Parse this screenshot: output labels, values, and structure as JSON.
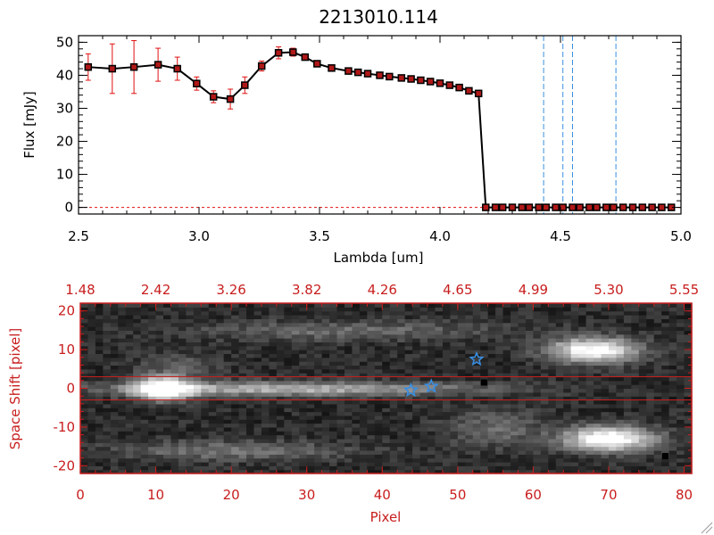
{
  "chart_data": [
    {
      "type": "line",
      "title": "2213010.114",
      "xlabel": "Lambda [um]",
      "ylabel": "Flux [mJy]",
      "xlim": [
        2.5,
        5.0
      ],
      "ylim": [
        -2,
        52
      ],
      "xticks": [
        "2.5",
        "3.0",
        "3.5",
        "4.0",
        "4.5",
        "5.0"
      ],
      "yticks": [
        "0",
        "10",
        "20",
        "30",
        "40",
        "50"
      ],
      "grid": false,
      "series": [
        {
          "x": [
            2.54,
            2.64,
            2.73,
            2.83,
            2.91,
            2.99,
            3.06,
            3.13,
            3.19,
            3.26,
            3.33,
            3.39,
            3.44,
            3.49,
            3.55,
            3.62,
            3.66,
            3.7,
            3.75,
            3.79,
            3.84,
            3.88,
            3.92,
            3.96,
            4.0,
            4.04,
            4.08,
            4.12,
            4.16,
            4.19,
            4.23,
            4.26,
            4.3,
            4.34,
            4.37,
            4.41,
            4.44,
            4.48,
            4.51,
            4.55,
            4.58,
            4.62,
            4.65,
            4.69,
            4.72,
            4.76,
            4.8,
            4.84,
            4.88,
            4.92,
            4.96
          ],
          "y": [
            42.5,
            42.0,
            42.5,
            43.2,
            42.0,
            37.5,
            33.5,
            32.8,
            37.0,
            42.8,
            46.8,
            47.0,
            45.5,
            43.5,
            42.2,
            41.3,
            40.9,
            40.5,
            40.0,
            39.6,
            39.2,
            38.9,
            38.5,
            38.1,
            37.6,
            37.0,
            36.3,
            35.3,
            34.5,
            0,
            0,
            0,
            0,
            0,
            0,
            0,
            0,
            0,
            0,
            0,
            0,
            0,
            0,
            0,
            0,
            0,
            0,
            0,
            0,
            0,
            0
          ],
          "yerr": [
            4.0,
            7.5,
            8.0,
            5.0,
            3.5,
            2.0,
            1.8,
            3.0,
            2.5,
            1.5,
            1.8,
            1.2,
            0,
            0,
            0,
            0,
            0,
            0,
            0,
            0,
            0,
            0,
            0,
            0,
            0,
            0,
            0,
            0,
            0,
            0,
            0,
            0,
            0,
            0,
            0,
            0,
            0,
            0,
            0,
            0,
            0,
            0,
            0,
            0,
            0,
            0,
            0,
            0,
            0,
            0,
            0
          ]
        }
      ],
      "vlines": [
        4.43,
        4.51,
        4.55,
        4.73
      ],
      "hline": 0
    },
    {
      "type": "heatmap",
      "xlabel": "Pixel",
      "ylabel": "Space Shift [pixel]",
      "xlim": [
        0,
        81
      ],
      "ylim": [
        -22,
        22
      ],
      "xticks": [
        "0",
        "10",
        "20",
        "30",
        "40",
        "50",
        "60",
        "70",
        "80"
      ],
      "yticks": [
        "-20",
        "-10",
        "0",
        "10",
        "20"
      ],
      "top_xticks": [
        "1.48",
        "2.42",
        "3.26",
        "3.82",
        "4.26",
        "4.65",
        "4.99",
        "5.30",
        "5.55"
      ],
      "aperture": [
        -3,
        3
      ],
      "features": [
        {
          "x": 11,
          "y": 0,
          "w": 4,
          "h": 3,
          "v": 1.0
        },
        {
          "x": 28,
          "y": 0,
          "w": 24,
          "h": 1.8,
          "v": 0.55
        },
        {
          "x": 68,
          "y": 10,
          "w": 6,
          "h": 3.2,
          "v": 0.9
        },
        {
          "x": 70,
          "y": -13,
          "w": 6,
          "h": 3.2,
          "v": 0.95
        },
        {
          "x": 20,
          "y": -16,
          "w": 15,
          "h": 2.5,
          "v": 0.3
        },
        {
          "x": 35,
          "y": 15,
          "w": 20,
          "h": 2.5,
          "v": 0.25
        },
        {
          "x": 13,
          "y": 6,
          "w": 5,
          "h": 3,
          "v": 0.2
        },
        {
          "x": 55,
          "y": -10,
          "w": 6,
          "h": 5,
          "v": 0.25
        }
      ],
      "stars": [
        {
          "x": 52.5,
          "y": 7.5
        },
        {
          "x": 46.5,
          "y": 0.5
        },
        {
          "x": 43.8,
          "y": -0.5
        }
      ],
      "dark_pixels": [
        {
          "x": 53.5,
          "y": 1.5
        },
        {
          "x": 77.5,
          "y": -17.5
        }
      ],
      "colors": {
        "axis_red": "#c81e1e",
        "star_blue": "#3a8ee0",
        "vline_blue": "#3a8ee0",
        "error_red": "#e01010"
      }
    }
  ]
}
